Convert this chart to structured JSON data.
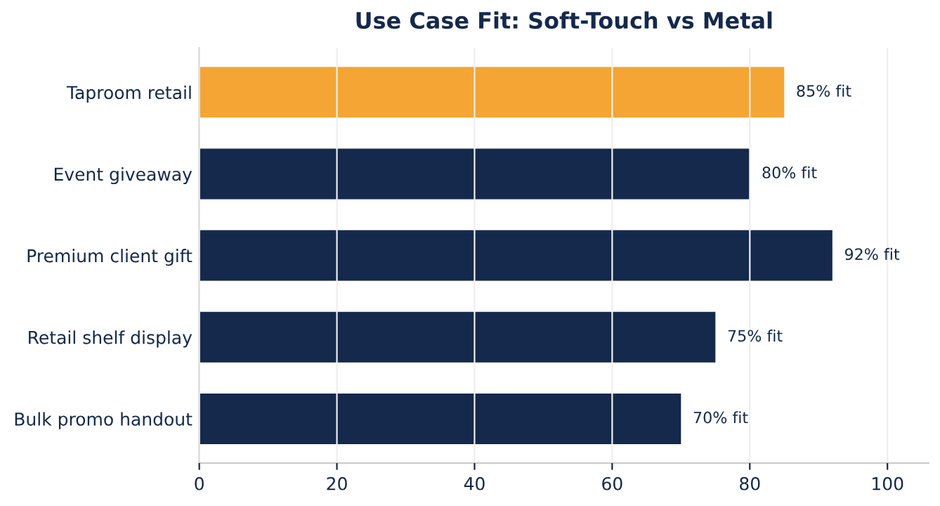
{
  "chart_data": {
    "type": "bar",
    "orientation": "horizontal",
    "title": "Use Case Fit: Soft-Touch vs Metal",
    "categories": [
      "Taproom retail",
      "Event giveaway",
      "Premium client gift",
      "Retail shelf display",
      "Bulk promo handout"
    ],
    "values": [
      85,
      80,
      92,
      75,
      70
    ],
    "colors": [
      "#f4a533",
      "#14294b",
      "#14294b",
      "#14294b",
      "#14294b"
    ],
    "value_labels": [
      "85% fit",
      "80% fit",
      "92% fit",
      "75% fit",
      "70% fit"
    ],
    "xlim": [
      0,
      106
    ],
    "xticks": [
      0,
      20,
      40,
      60,
      80,
      100
    ],
    "grid": "x",
    "legend": false
  }
}
